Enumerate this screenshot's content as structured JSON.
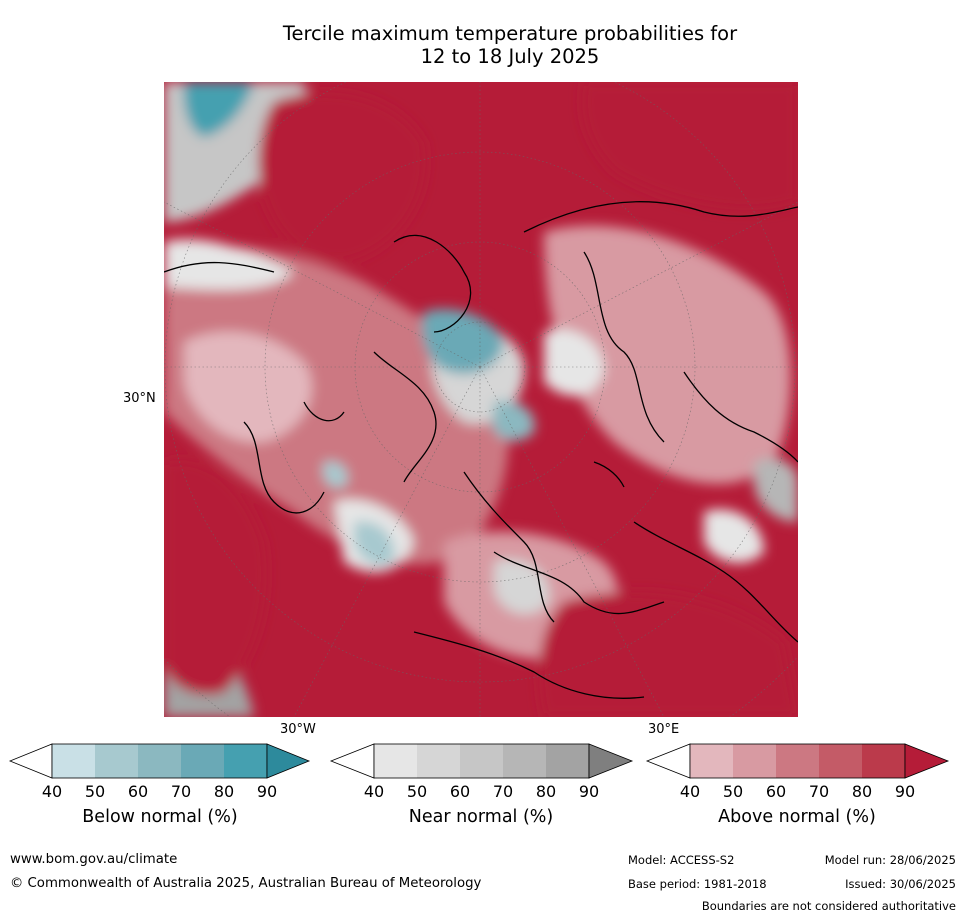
{
  "title": {
    "line1": "Tercile maximum temperature probabilities for",
    "line2": "12 to 18 July 2025"
  },
  "map": {
    "lat_label": "30°N",
    "lon_label_left": "30°W",
    "lon_label_right": "30°E"
  },
  "colorbars": [
    {
      "label": "Below normal (%)",
      "ticks": [
        "40",
        "50",
        "60",
        "70",
        "80",
        "90"
      ],
      "colors": [
        "#ffffff",
        "#c9e0e6",
        "#a7c9cf",
        "#8bb8c0",
        "#6aa9b6",
        "#45a0b0",
        "#2d8a9c"
      ]
    },
    {
      "label": "Near normal (%)",
      "ticks": [
        "40",
        "50",
        "60",
        "70",
        "80",
        "90"
      ],
      "colors": [
        "#ffffff",
        "#e6e6e6",
        "#d6d6d6",
        "#c6c6c6",
        "#b6b6b6",
        "#a3a3a3",
        "#7f7f7f"
      ]
    },
    {
      "label": "Above normal (%)",
      "ticks": [
        "40",
        "50",
        "60",
        "70",
        "80",
        "90"
      ],
      "colors": [
        "#ffffff",
        "#e3b7bd",
        "#d89aa2",
        "#cc7882",
        "#c45b67",
        "#bb3a4b",
        "#b51c38"
      ]
    }
  ],
  "footer": {
    "website": "www.bom.gov.au/climate",
    "copyright": "© Commonwealth of Australia 2025, Australian Bureau of Meteorology",
    "model": "Model: ACCESS-S2",
    "base_period": "Base period: 1981-2018",
    "model_run": "Model run: 28/06/2025",
    "issued": "Issued: 30/06/2025",
    "disclaimer": "Boundaries are not considered authoritative"
  }
}
